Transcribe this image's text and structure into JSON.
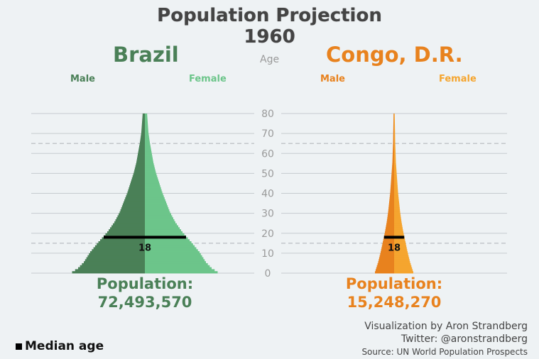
{
  "title": "Population Projection",
  "year": "1960",
  "age_axis_label": "Age",
  "legend": {
    "label": "Median age"
  },
  "credits": {
    "line1": "Visualization by Aron Strandberg",
    "line2": "Twitter: @aronstrandberg",
    "line3": "Source: UN World Population Prospects"
  },
  "colors": {
    "brazil_male": "#4a8057",
    "brazil_female": "#6cc58a",
    "brazil_label": "#4a8057",
    "brazil_female_label": "#6cc58a",
    "congo_male": "#e8821e",
    "congo_female": "#f5a52f",
    "congo_label": "#e8821e",
    "congo_female_label": "#f5a52f"
  },
  "chart_data": [
    {
      "type": "population_pyramid",
      "country": "Brazil",
      "male_label": "Male",
      "female_label": "Female",
      "population_label": "Population:",
      "population": "72,493,570",
      "median_age": 18,
      "median_age_label": "18",
      "ylim": [
        0,
        80
      ],
      "y_ticks": [
        0,
        10,
        20,
        30,
        40,
        50,
        60,
        70,
        80
      ],
      "reference_lines": [
        15,
        65
      ],
      "x_scale_max": 25,
      "age_profile": [
        [
          0,
          20.5
        ],
        [
          2,
          18.8
        ],
        [
          5,
          17.2
        ],
        [
          10,
          15.4
        ],
        [
          15,
          13.1
        ],
        [
          20,
          10.6
        ],
        [
          25,
          8.6
        ],
        [
          30,
          7.1
        ],
        [
          35,
          6.0
        ],
        [
          40,
          4.9
        ],
        [
          45,
          4.0
        ],
        [
          50,
          3.1
        ],
        [
          55,
          2.4
        ],
        [
          60,
          1.9
        ],
        [
          65,
          1.4
        ],
        [
          70,
          1.0
        ],
        [
          75,
          0.8
        ],
        [
          80,
          0.6
        ]
      ]
    },
    {
      "type": "population_pyramid",
      "country": "Congo, D.R.",
      "male_label": "Male",
      "female_label": "Female",
      "population_label": "Population:",
      "population": "15,248,270",
      "median_age": 18,
      "median_age_label": "18",
      "ylim": [
        0,
        80
      ],
      "y_ticks": [
        0,
        10,
        20,
        30,
        40,
        50,
        60,
        70,
        80
      ],
      "reference_lines": [
        15,
        65
      ],
      "x_scale_max": 25,
      "age_profile": [
        [
          0,
          5.4
        ],
        [
          5,
          4.5
        ],
        [
          10,
          3.8
        ],
        [
          15,
          3.2
        ],
        [
          20,
          2.6
        ],
        [
          25,
          2.1
        ],
        [
          30,
          1.7
        ],
        [
          35,
          1.4
        ],
        [
          40,
          1.1
        ],
        [
          45,
          0.9
        ],
        [
          50,
          0.7
        ],
        [
          55,
          0.5
        ],
        [
          60,
          0.4
        ],
        [
          65,
          0.3
        ],
        [
          70,
          0.25
        ],
        [
          75,
          0.2
        ],
        [
          80,
          0.15
        ]
      ]
    }
  ]
}
